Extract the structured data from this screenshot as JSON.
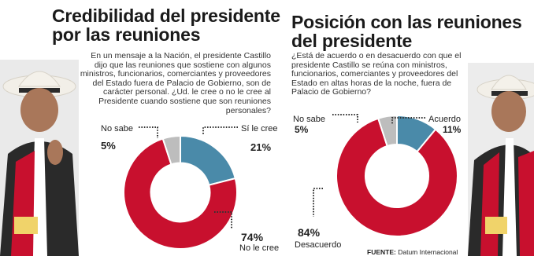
{
  "left": {
    "title": "Credibilidad del presidente\npor las reuniones",
    "body": "En un mensaje a la Nación, el presidente Castillo dijo que las reuniones que sostiene con algunos ministros, funcionarios, comerciantes y proveedores del Estado fuera de Palacio de Gobierno, son de carácter personal. ¿Ud. le cree o no le cree al Presidente cuando sostiene que son reuniones personales?"
  },
  "right": {
    "title": "Posición con las reuniones\ndel presidente",
    "body": "¿Está de acuerdo o en desacuerdo con que el presidente Castillo se reúna con ministros, funcionarios, comerciantes y proveedores del Estado en altas horas de la noche, fuera de Palacio de Gobierno?",
    "source_label": "FUENTE:",
    "source_value": "Datum Internacional"
  },
  "colors": {
    "red": "#c8102e",
    "blue": "#4a8aa9",
    "gray": "#bdbdbd",
    "dots": "#333333"
  },
  "chart_data": [
    {
      "type": "pie",
      "title": "Credibilidad del presidente por las reuniones",
      "labels": [
        "Sí le cree",
        "No le cree",
        "No sabe"
      ],
      "values": [
        21,
        74,
        5
      ],
      "value_labels": [
        "21%",
        "74%",
        "5%"
      ],
      "unit": "%"
    },
    {
      "type": "pie",
      "title": "Posición con las reuniones del presidente",
      "labels": [
        "Acuerdo",
        "Desacuerdo",
        "No sabe"
      ],
      "values": [
        11,
        84,
        5
      ],
      "value_labels": [
        "11%",
        "84%",
        "5%"
      ],
      "unit": "%"
    }
  ]
}
